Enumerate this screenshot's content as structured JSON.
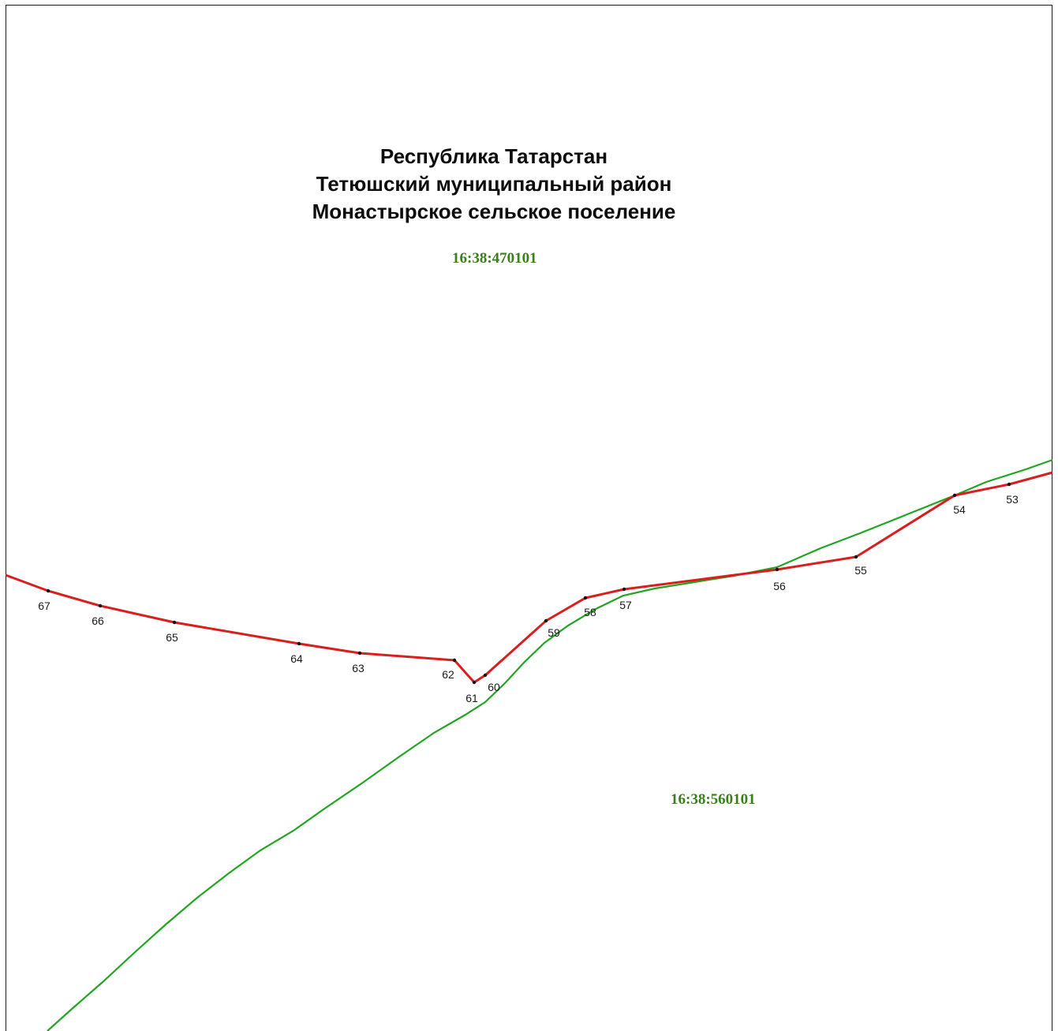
{
  "map": {
    "heading": {
      "line1": "Республика Татарстан",
      "line2": "Тетюшский муниципальный район",
      "line3": "Монастырское сельское поселение"
    },
    "quarters": [
      {
        "id": "north",
        "label": "16:38:470101"
      },
      {
        "id": "south",
        "label": "16:38:560101"
      }
    ],
    "colors": {
      "boundary_red": "#d81f1f",
      "boundary_green": "#22a522",
      "quarter_label": "#3a7f1a",
      "point_marker": "#111111",
      "frame": "#1a1a1a"
    },
    "boundary_points": [
      "53",
      "54",
      "55",
      "56",
      "57",
      "58",
      "59",
      "60",
      "61",
      "62",
      "63",
      "64",
      "65",
      "66",
      "67"
    ]
  }
}
